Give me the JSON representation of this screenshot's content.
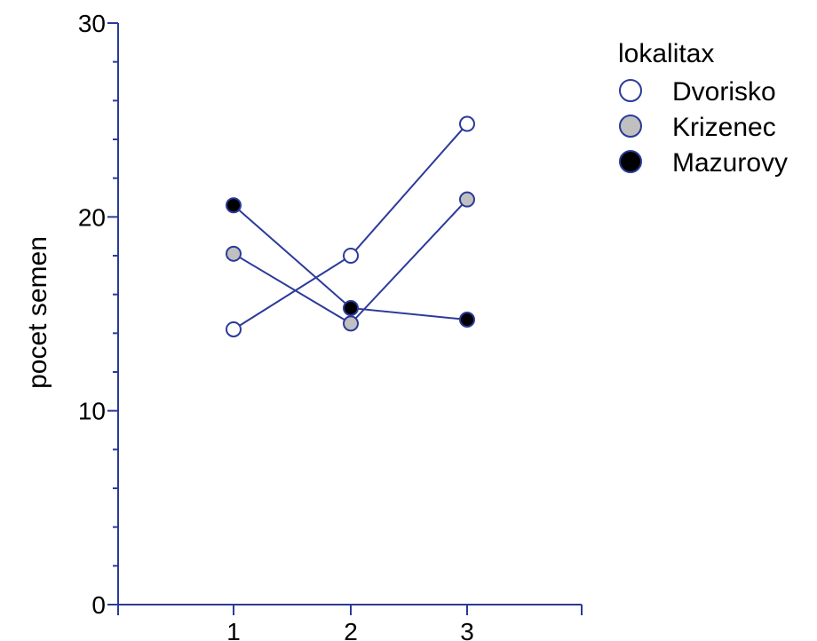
{
  "chart_data": {
    "type": "line",
    "title": "",
    "xlabel": "",
    "ylabel": "pocet semen",
    "categories": [
      "1",
      "2",
      "3"
    ],
    "ylim": [
      0,
      30
    ],
    "yticks": [
      "0",
      "10",
      "20",
      "30"
    ],
    "legend": {
      "title": "lokalitax",
      "placement": "top-right"
    },
    "series": [
      {
        "name": "Dvorisko",
        "values": [
          14.2,
          18.0,
          24.8
        ],
        "marker_fill": "#ffffff"
      },
      {
        "name": "Krizenec",
        "values": [
          18.1,
          14.5,
          20.9
        ],
        "marker_fill": "#c0c0c0"
      },
      {
        "name": "Mazurovy",
        "values": [
          20.6,
          15.3,
          14.7
        ],
        "marker_fill": "#000000"
      }
    ],
    "line_color": "#2b3a9a",
    "axis_color": "#2b3a9a",
    "grid": false
  }
}
